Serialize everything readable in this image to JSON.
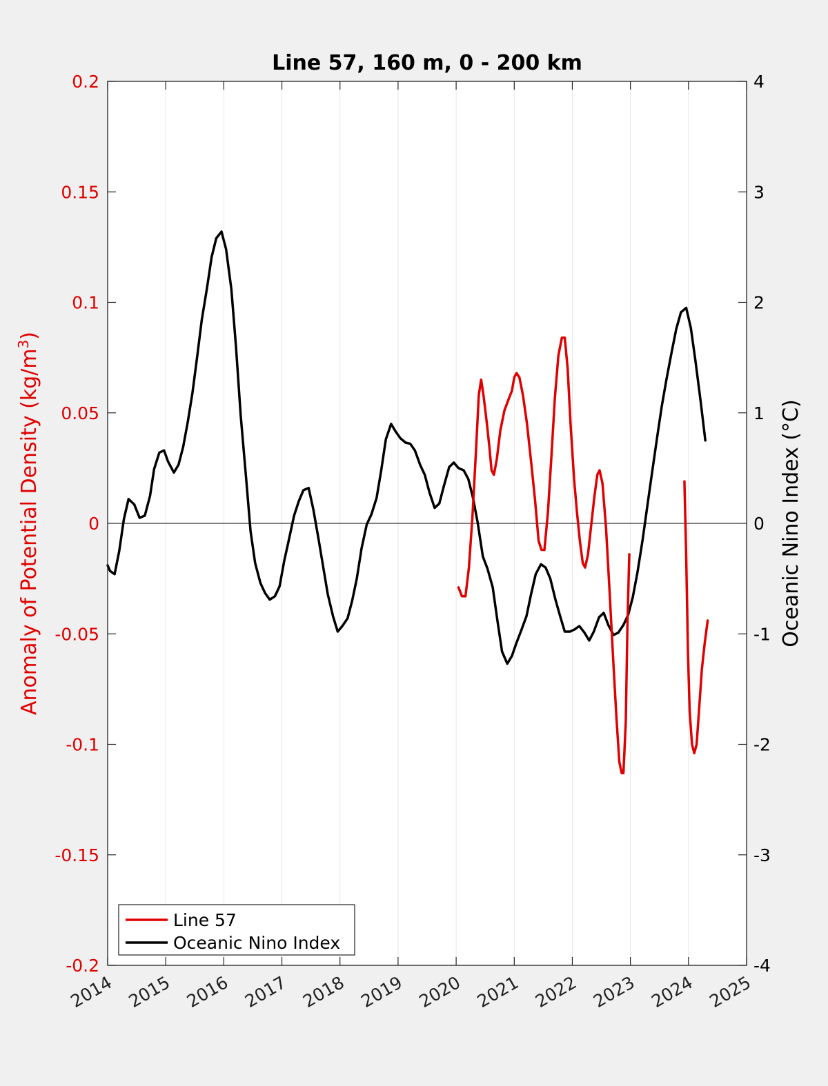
{
  "chart_data": {
    "type": "line",
    "title": "Line 57, 160 m, 0 - 200 km",
    "xlabel": "",
    "ylabel_left": "Anomaly of Potential Density (kg/m",
    "ylabel_left_sup": "3",
    "ylabel_left_close": ")",
    "ylabel_right": "Oceanic Nino Index (°C)",
    "xlim": [
      2014,
      2025
    ],
    "ylim_left": [
      -0.2,
      0.2
    ],
    "ylim_right": [
      -4,
      4
    ],
    "x_ticks": [
      "2014",
      "2015",
      "2016",
      "2017",
      "2018",
      "2019",
      "2020",
      "2021",
      "2022",
      "2023",
      "2024",
      "2025"
    ],
    "y_left_ticks": [
      "0.2",
      "0.15",
      "0.1",
      "0.05",
      "0",
      "-0.05",
      "-0.1",
      "-0.15",
      "-0.2"
    ],
    "y_right_ticks": [
      "4",
      "3",
      "2",
      "1",
      "0",
      "-1",
      "-2",
      "-3",
      "-4"
    ],
    "grid": "vertical",
    "zero_line": true,
    "legend_position": "bottom-left",
    "series": [
      {
        "name": "Line 57",
        "axis": "left",
        "color": "#e00000",
        "segments": [
          [
            [
              2020.04,
              -0.029
            ],
            [
              2020.1,
              -0.033
            ],
            [
              2020.16,
              -0.033
            ],
            [
              2020.22,
              -0.02
            ],
            [
              2020.28,
              0.003
            ],
            [
              2020.34,
              0.032
            ],
            [
              2020.39,
              0.058
            ],
            [
              2020.43,
              0.065
            ],
            [
              2020.47,
              0.058
            ],
            [
              2020.53,
              0.045
            ],
            [
              2020.57,
              0.035
            ],
            [
              2020.61,
              0.024
            ],
            [
              2020.65,
              0.022
            ],
            [
              2020.7,
              0.029
            ],
            [
              2020.76,
              0.042
            ],
            [
              2020.83,
              0.051
            ],
            [
              2020.9,
              0.056
            ],
            [
              2020.96,
              0.06
            ],
            [
              2021.0,
              0.066
            ],
            [
              2021.04,
              0.068
            ],
            [
              2021.09,
              0.066
            ],
            [
              2021.15,
              0.058
            ],
            [
              2021.22,
              0.045
            ],
            [
              2021.29,
              0.028
            ],
            [
              2021.36,
              0.01
            ],
            [
              2021.42,
              -0.008
            ],
            [
              2021.47,
              -0.012
            ],
            [
              2021.52,
              -0.012
            ],
            [
              2021.58,
              0.005
            ],
            [
              2021.64,
              0.03
            ],
            [
              2021.7,
              0.057
            ],
            [
              2021.76,
              0.076
            ],
            [
              2021.82,
              0.084
            ],
            [
              2021.87,
              0.084
            ],
            [
              2021.92,
              0.07
            ],
            [
              2021.97,
              0.045
            ],
            [
              2022.03,
              0.02
            ],
            [
              2022.08,
              0.005
            ],
            [
              2022.13,
              -0.008
            ],
            [
              2022.18,
              -0.018
            ],
            [
              2022.22,
              -0.02
            ],
            [
              2022.27,
              -0.014
            ],
            [
              2022.32,
              -0.002
            ],
            [
              2022.38,
              0.012
            ],
            [
              2022.43,
              0.022
            ],
            [
              2022.47,
              0.024
            ],
            [
              2022.52,
              0.018
            ],
            [
              2022.58,
              -0.002
            ],
            [
              2022.64,
              -0.03
            ],
            [
              2022.7,
              -0.06
            ],
            [
              2022.76,
              -0.088
            ],
            [
              2022.81,
              -0.108
            ],
            [
              2022.85,
              -0.113
            ],
            [
              2022.88,
              -0.113
            ],
            [
              2022.92,
              -0.09
            ],
            [
              2022.95,
              -0.045
            ],
            [
              2022.98,
              -0.014
            ]
          ],
          [
            [
              2023.93,
              0.019
            ],
            [
              2023.96,
              -0.015
            ],
            [
              2023.99,
              -0.058
            ],
            [
              2024.02,
              -0.085
            ],
            [
              2024.06,
              -0.1
            ],
            [
              2024.1,
              -0.104
            ],
            [
              2024.14,
              -0.1
            ],
            [
              2024.18,
              -0.085
            ],
            [
              2024.23,
              -0.066
            ],
            [
              2024.28,
              -0.054
            ],
            [
              2024.33,
              -0.044
            ]
          ]
        ]
      },
      {
        "name": "Oceanic Nino Index",
        "axis": "right",
        "color": "#000000",
        "segments": [
          [
            [
              2014.0,
              -0.38
            ],
            [
              2014.04,
              -0.43
            ],
            [
              2014.12,
              -0.46
            ],
            [
              2014.2,
              -0.25
            ],
            [
              2014.28,
              0.04
            ],
            [
              2014.36,
              0.22
            ],
            [
              2014.46,
              0.17
            ],
            [
              2014.55,
              0.05
            ],
            [
              2014.64,
              0.07
            ],
            [
              2014.73,
              0.25
            ],
            [
              2014.8,
              0.49
            ],
            [
              2014.89,
              0.64
            ],
            [
              2014.97,
              0.66
            ],
            [
              2015.04,
              0.56
            ],
            [
              2015.14,
              0.46
            ],
            [
              2015.22,
              0.53
            ],
            [
              2015.3,
              0.69
            ],
            [
              2015.38,
              0.92
            ],
            [
              2015.46,
              1.18
            ],
            [
              2015.54,
              1.5
            ],
            [
              2015.62,
              1.84
            ],
            [
              2015.71,
              2.13
            ],
            [
              2015.79,
              2.41
            ],
            [
              2015.87,
              2.58
            ],
            [
              2015.96,
              2.64
            ],
            [
              2016.04,
              2.48
            ],
            [
              2016.13,
              2.12
            ],
            [
              2016.21,
              1.6
            ],
            [
              2016.29,
              0.98
            ],
            [
              2016.38,
              0.43
            ],
            [
              2016.46,
              -0.07
            ],
            [
              2016.54,
              -0.36
            ],
            [
              2016.63,
              -0.54
            ],
            [
              2016.71,
              -0.63
            ],
            [
              2016.79,
              -0.69
            ],
            [
              2016.88,
              -0.66
            ],
            [
              2016.96,
              -0.57
            ],
            [
              2017.04,
              -0.34
            ],
            [
              2017.12,
              -0.15
            ],
            [
              2017.21,
              0.07
            ],
            [
              2017.29,
              0.2
            ],
            [
              2017.37,
              0.3
            ],
            [
              2017.46,
              0.32
            ],
            [
              2017.54,
              0.13
            ],
            [
              2017.63,
              -0.14
            ],
            [
              2017.71,
              -0.39
            ],
            [
              2017.79,
              -0.64
            ],
            [
              2017.88,
              -0.84
            ],
            [
              2017.96,
              -0.98
            ],
            [
              2018.04,
              -0.93
            ],
            [
              2018.13,
              -0.86
            ],
            [
              2018.21,
              -0.7
            ],
            [
              2018.29,
              -0.5
            ],
            [
              2018.37,
              -0.23
            ],
            [
              2018.46,
              -0.01
            ],
            [
              2018.54,
              0.08
            ],
            [
              2018.63,
              0.23
            ],
            [
              2018.71,
              0.48
            ],
            [
              2018.79,
              0.76
            ],
            [
              2018.88,
              0.9
            ],
            [
              2018.96,
              0.83
            ],
            [
              2019.04,
              0.77
            ],
            [
              2019.13,
              0.73
            ],
            [
              2019.21,
              0.72
            ],
            [
              2019.29,
              0.66
            ],
            [
              2019.38,
              0.53
            ],
            [
              2019.46,
              0.44
            ],
            [
              2019.54,
              0.28
            ],
            [
              2019.63,
              0.14
            ],
            [
              2019.71,
              0.18
            ],
            [
              2019.79,
              0.34
            ],
            [
              2019.88,
              0.51
            ],
            [
              2019.96,
              0.55
            ],
            [
              2020.04,
              0.5
            ],
            [
              2020.13,
              0.48
            ],
            [
              2020.21,
              0.4
            ],
            [
              2020.29,
              0.23
            ],
            [
              2020.37,
              0.01
            ],
            [
              2020.46,
              -0.3
            ],
            [
              2020.54,
              -0.41
            ],
            [
              2020.63,
              -0.58
            ],
            [
              2020.71,
              -0.88
            ],
            [
              2020.79,
              -1.16
            ],
            [
              2020.88,
              -1.27
            ],
            [
              2020.96,
              -1.2
            ],
            [
              2021.04,
              -1.08
            ],
            [
              2021.12,
              -0.97
            ],
            [
              2021.21,
              -0.84
            ],
            [
              2021.29,
              -0.64
            ],
            [
              2021.37,
              -0.46
            ],
            [
              2021.46,
              -0.37
            ],
            [
              2021.54,
              -0.4
            ],
            [
              2021.62,
              -0.5
            ],
            [
              2021.71,
              -0.69
            ],
            [
              2021.79,
              -0.84
            ],
            [
              2021.87,
              -0.98
            ],
            [
              2021.96,
              -0.98
            ],
            [
              2022.04,
              -0.96
            ],
            [
              2022.12,
              -0.93
            ],
            [
              2022.21,
              -0.99
            ],
            [
              2022.29,
              -1.06
            ],
            [
              2022.37,
              -0.98
            ],
            [
              2022.46,
              -0.85
            ],
            [
              2022.54,
              -0.81
            ],
            [
              2022.62,
              -0.92
            ],
            [
              2022.71,
              -1.01
            ],
            [
              2022.79,
              -0.99
            ],
            [
              2022.88,
              -0.92
            ],
            [
              2022.96,
              -0.83
            ],
            [
              2023.04,
              -0.67
            ],
            [
              2023.12,
              -0.45
            ],
            [
              2023.21,
              -0.15
            ],
            [
              2023.29,
              0.15
            ],
            [
              2023.37,
              0.45
            ],
            [
              2023.46,
              0.78
            ],
            [
              2023.54,
              1.06
            ],
            [
              2023.62,
              1.3
            ],
            [
              2023.71,
              1.55
            ],
            [
              2023.79,
              1.76
            ],
            [
              2023.87,
              1.91
            ],
            [
              2023.96,
              1.95
            ],
            [
              2024.04,
              1.77
            ],
            [
              2024.12,
              1.47
            ],
            [
              2024.21,
              1.1
            ],
            [
              2024.29,
              0.75
            ]
          ]
        ]
      }
    ]
  }
}
